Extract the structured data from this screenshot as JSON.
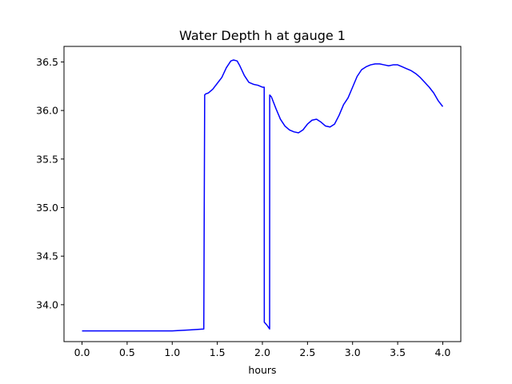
{
  "chart_data": {
    "type": "line",
    "title": "Water Depth h at gauge 1",
    "xlabel": "hours",
    "ylabel": "",
    "xlim": [
      -0.2,
      4.2
    ],
    "ylim": [
      33.62,
      36.66
    ],
    "xticks": [
      0.0,
      0.5,
      1.0,
      1.5,
      2.0,
      2.5,
      3.0,
      3.5,
      4.0
    ],
    "xtick_labels": [
      "0.0",
      "0.5",
      "1.0",
      "1.5",
      "2.0",
      "2.5",
      "3.0",
      "3.5",
      "4.0"
    ],
    "yticks": [
      34.0,
      34.5,
      35.0,
      35.5,
      36.0,
      36.5
    ],
    "ytick_labels": [
      "34.0",
      "34.5",
      "35.0",
      "35.5",
      "36.0",
      "36.5"
    ],
    "grid": false,
    "color": "#0000ff",
    "series": [
      {
        "x": [
          0.0,
          0.5,
          1.0,
          1.2,
          1.35,
          1.36,
          1.37,
          1.4,
          1.45,
          1.5,
          1.55,
          1.6,
          1.65,
          1.68,
          1.72,
          1.75,
          1.8,
          1.85,
          1.9,
          1.95,
          2.0,
          2.02,
          2.021,
          2.05,
          2.08,
          2.081,
          2.1,
          2.15,
          2.2,
          2.25,
          2.3,
          2.35,
          2.4,
          2.45,
          2.5,
          2.55,
          2.6,
          2.65,
          2.7,
          2.75,
          2.8,
          2.85,
          2.9,
          2.95,
          3.0,
          3.05,
          3.1,
          3.15,
          3.2,
          3.25,
          3.3,
          3.35,
          3.4,
          3.45,
          3.5,
          3.55,
          3.6,
          3.65,
          3.7,
          3.75,
          3.8,
          3.85,
          3.9,
          3.95,
          4.0
        ],
        "y": [
          33.73,
          33.73,
          33.73,
          33.74,
          33.75,
          36.16,
          36.17,
          36.18,
          36.22,
          36.28,
          36.34,
          36.44,
          36.51,
          36.52,
          36.51,
          36.46,
          36.36,
          36.29,
          36.27,
          36.26,
          36.24,
          36.24,
          33.82,
          33.79,
          33.75,
          36.16,
          36.14,
          36.02,
          35.91,
          35.84,
          35.8,
          35.78,
          35.77,
          35.8,
          35.86,
          35.9,
          35.91,
          35.88,
          35.84,
          35.83,
          35.86,
          35.95,
          36.06,
          36.13,
          36.24,
          36.35,
          36.42,
          36.45,
          36.47,
          36.48,
          36.48,
          36.47,
          36.46,
          36.47,
          36.47,
          36.45,
          36.43,
          36.41,
          36.38,
          36.34,
          36.29,
          36.24,
          36.18,
          36.1,
          36.04
        ]
      }
    ]
  }
}
